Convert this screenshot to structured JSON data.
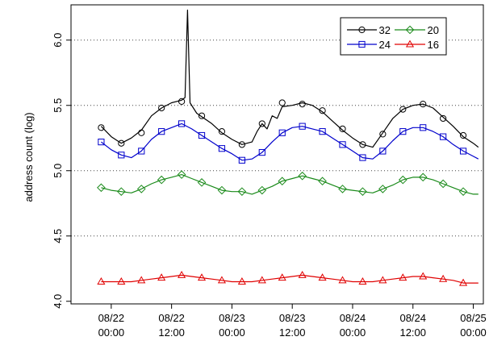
{
  "chart_data": {
    "type": "line",
    "title": "",
    "xlabel": "",
    "ylabel": "address count (log)",
    "ylim": [
      3.98,
      6.27
    ],
    "xlim": [
      "2008-08-21T16:00",
      "2008-08-25T02:00"
    ],
    "grid": "horizontal dotted",
    "legend_position": "top-right",
    "x_ticks": [
      {
        "x": "2008-08-22T00:00",
        "line1": "08/22",
        "line2": "00:00"
      },
      {
        "x": "2008-08-22T12:00",
        "line1": "08/22",
        "line2": "12:00"
      },
      {
        "x": "2008-08-23T00:00",
        "line1": "08/23",
        "line2": "00:00"
      },
      {
        "x": "2008-08-23T12:00",
        "line1": "08/23",
        "line2": "12:00"
      },
      {
        "x": "2008-08-24T00:00",
        "line1": "08/24",
        "line2": "00:00"
      },
      {
        "x": "2008-08-24T12:00",
        "line1": "08/24",
        "line2": "12:00"
      },
      {
        "x": "2008-08-25T00:00",
        "line1": "08/25",
        "line2": "00:00"
      }
    ],
    "y_ticks": [
      {
        "value": 4.0,
        "label": "4.0"
      },
      {
        "value": 4.5,
        "label": "4.5"
      },
      {
        "value": 5.0,
        "label": "5.0"
      },
      {
        "value": 5.5,
        "label": "5.5"
      },
      {
        "value": 6.0,
        "label": "6.0"
      }
    ],
    "series": [
      {
        "name": "32",
        "color": "#000000",
        "marker": "circle",
        "points": [
          [
            "2008-08-21T22:00",
            5.34
          ],
          [
            "2008-08-22T00:00",
            5.26
          ],
          [
            "2008-08-22T02:00",
            5.21
          ],
          [
            "2008-08-22T04:00",
            5.25
          ],
          [
            "2008-08-22T06:00",
            5.31
          ],
          [
            "2008-08-22T08:00",
            5.42
          ],
          [
            "2008-08-22T10:00",
            5.48
          ],
          [
            "2008-08-22T12:00",
            5.52
          ],
          [
            "2008-08-22T14:00",
            5.54
          ],
          [
            "2008-08-22T14:40",
            5.56
          ],
          [
            "2008-08-22T15:10",
            6.23
          ],
          [
            "2008-08-22T15:40",
            5.52
          ],
          [
            "2008-08-22T17:00",
            5.44
          ],
          [
            "2008-08-22T20:00",
            5.36
          ],
          [
            "2008-08-22T22:00",
            5.29
          ],
          [
            "2008-08-23T00:00",
            5.24
          ],
          [
            "2008-08-23T02:00",
            5.2
          ],
          [
            "2008-08-23T04:00",
            5.22
          ],
          [
            "2008-08-23T05:00",
            5.3
          ],
          [
            "2008-08-23T06:00",
            5.36
          ],
          [
            "2008-08-23T07:00",
            5.32
          ],
          [
            "2008-08-23T08:00",
            5.42
          ],
          [
            "2008-08-23T09:00",
            5.4
          ],
          [
            "2008-08-23T10:00",
            5.49
          ],
          [
            "2008-08-23T12:00",
            5.5
          ],
          [
            "2008-08-23T14:00",
            5.52
          ],
          [
            "2008-08-23T16:00",
            5.5
          ],
          [
            "2008-08-23T18:00",
            5.45
          ],
          [
            "2008-08-23T20:00",
            5.38
          ],
          [
            "2008-08-23T22:00",
            5.31
          ],
          [
            "2008-08-24T00:00",
            5.25
          ],
          [
            "2008-08-24T02:00",
            5.2
          ],
          [
            "2008-08-24T04:00",
            5.18
          ],
          [
            "2008-08-24T06:00",
            5.29
          ],
          [
            "2008-08-24T08:00",
            5.4
          ],
          [
            "2008-08-24T10:00",
            5.47
          ],
          [
            "2008-08-24T12:00",
            5.5
          ],
          [
            "2008-08-24T14:00",
            5.51
          ],
          [
            "2008-08-24T16:00",
            5.48
          ],
          [
            "2008-08-24T18:00",
            5.41
          ],
          [
            "2008-08-24T20:00",
            5.34
          ],
          [
            "2008-08-24T22:00",
            5.26
          ],
          [
            "2008-08-25T00:00",
            5.21
          ],
          [
            "2008-08-25T01:00",
            5.18
          ]
        ],
        "marker_points": [
          [
            "2008-08-21T22:00",
            5.33
          ],
          [
            "2008-08-22T02:00",
            5.21
          ],
          [
            "2008-08-22T06:00",
            5.29
          ],
          [
            "2008-08-22T10:00",
            5.48
          ],
          [
            "2008-08-22T14:00",
            5.53
          ],
          [
            "2008-08-22T18:00",
            5.42
          ],
          [
            "2008-08-22T22:00",
            5.3
          ],
          [
            "2008-08-23T02:00",
            5.2
          ],
          [
            "2008-08-23T06:00",
            5.36
          ],
          [
            "2008-08-23T10:00",
            5.52
          ],
          [
            "2008-08-23T14:00",
            5.51
          ],
          [
            "2008-08-23T18:00",
            5.46
          ],
          [
            "2008-08-23T22:00",
            5.32
          ],
          [
            "2008-08-24T02:00",
            5.2
          ],
          [
            "2008-08-24T06:00",
            5.28
          ],
          [
            "2008-08-24T10:00",
            5.47
          ],
          [
            "2008-08-24T14:00",
            5.51
          ],
          [
            "2008-08-24T18:00",
            5.4
          ],
          [
            "2008-08-24T22:00",
            5.27
          ]
        ]
      },
      {
        "name": "24",
        "color": "#0000cc",
        "marker": "square",
        "points": [
          [
            "2008-08-21T22:00",
            5.22
          ],
          [
            "2008-08-22T00:00",
            5.16
          ],
          [
            "2008-08-22T02:00",
            5.12
          ],
          [
            "2008-08-22T04:00",
            5.1
          ],
          [
            "2008-08-22T06:00",
            5.15
          ],
          [
            "2008-08-22T08:00",
            5.24
          ],
          [
            "2008-08-22T10:00",
            5.3
          ],
          [
            "2008-08-22T12:00",
            5.33
          ],
          [
            "2008-08-22T14:00",
            5.36
          ],
          [
            "2008-08-22T16:00",
            5.32
          ],
          [
            "2008-08-22T18:00",
            5.27
          ],
          [
            "2008-08-22T20:00",
            5.22
          ],
          [
            "2008-08-22T22:00",
            5.17
          ],
          [
            "2008-08-23T00:00",
            5.13
          ],
          [
            "2008-08-23T02:00",
            5.08
          ],
          [
            "2008-08-23T04:00",
            5.09
          ],
          [
            "2008-08-23T06:00",
            5.14
          ],
          [
            "2008-08-23T08:00",
            5.22
          ],
          [
            "2008-08-23T10:00",
            5.29
          ],
          [
            "2008-08-23T12:00",
            5.33
          ],
          [
            "2008-08-23T14:00",
            5.34
          ],
          [
            "2008-08-23T16:00",
            5.32
          ],
          [
            "2008-08-23T18:00",
            5.3
          ],
          [
            "2008-08-23T20:00",
            5.25
          ],
          [
            "2008-08-23T22:00",
            5.2
          ],
          [
            "2008-08-24T00:00",
            5.15
          ],
          [
            "2008-08-24T02:00",
            5.1
          ],
          [
            "2008-08-24T04:00",
            5.09
          ],
          [
            "2008-08-24T06:00",
            5.15
          ],
          [
            "2008-08-24T08:00",
            5.23
          ],
          [
            "2008-08-24T10:00",
            5.3
          ],
          [
            "2008-08-24T12:00",
            5.33
          ],
          [
            "2008-08-24T14:00",
            5.33
          ],
          [
            "2008-08-24T16:00",
            5.3
          ],
          [
            "2008-08-24T18:00",
            5.26
          ],
          [
            "2008-08-24T20:00",
            5.2
          ],
          [
            "2008-08-24T22:00",
            5.15
          ],
          [
            "2008-08-25T00:00",
            5.11
          ],
          [
            "2008-08-25T01:00",
            5.09
          ]
        ],
        "marker_points": [
          [
            "2008-08-21T22:00",
            5.22
          ],
          [
            "2008-08-22T02:00",
            5.12
          ],
          [
            "2008-08-22T06:00",
            5.15
          ],
          [
            "2008-08-22T10:00",
            5.3
          ],
          [
            "2008-08-22T14:00",
            5.36
          ],
          [
            "2008-08-22T18:00",
            5.27
          ],
          [
            "2008-08-22T22:00",
            5.17
          ],
          [
            "2008-08-23T02:00",
            5.08
          ],
          [
            "2008-08-23T06:00",
            5.14
          ],
          [
            "2008-08-23T10:00",
            5.29
          ],
          [
            "2008-08-23T14:00",
            5.34
          ],
          [
            "2008-08-23T18:00",
            5.3
          ],
          [
            "2008-08-23T22:00",
            5.2
          ],
          [
            "2008-08-24T02:00",
            5.1
          ],
          [
            "2008-08-24T06:00",
            5.15
          ],
          [
            "2008-08-24T10:00",
            5.3
          ],
          [
            "2008-08-24T14:00",
            5.33
          ],
          [
            "2008-08-24T18:00",
            5.26
          ],
          [
            "2008-08-24T22:00",
            5.15
          ]
        ]
      },
      {
        "name": "20",
        "color": "#1a8a1a",
        "marker": "diamond",
        "points": [
          [
            "2008-08-21T22:00",
            4.87
          ],
          [
            "2008-08-22T00:00",
            4.85
          ],
          [
            "2008-08-22T02:00",
            4.84
          ],
          [
            "2008-08-22T04:00",
            4.83
          ],
          [
            "2008-08-22T06:00",
            4.86
          ],
          [
            "2008-08-22T08:00",
            4.9
          ],
          [
            "2008-08-22T10:00",
            4.93
          ],
          [
            "2008-08-22T12:00",
            4.95
          ],
          [
            "2008-08-22T14:00",
            4.97
          ],
          [
            "2008-08-22T16:00",
            4.94
          ],
          [
            "2008-08-22T18:00",
            4.91
          ],
          [
            "2008-08-22T20:00",
            4.88
          ],
          [
            "2008-08-22T22:00",
            4.85
          ],
          [
            "2008-08-23T00:00",
            4.84
          ],
          [
            "2008-08-23T02:00",
            4.84
          ],
          [
            "2008-08-23T04:00",
            4.82
          ],
          [
            "2008-08-23T06:00",
            4.85
          ],
          [
            "2008-08-23T08:00",
            4.88
          ],
          [
            "2008-08-23T10:00",
            4.92
          ],
          [
            "2008-08-23T12:00",
            4.94
          ],
          [
            "2008-08-23T14:00",
            4.96
          ],
          [
            "2008-08-23T16:00",
            4.94
          ],
          [
            "2008-08-23T18:00",
            4.92
          ],
          [
            "2008-08-23T20:00",
            4.89
          ],
          [
            "2008-08-23T22:00",
            4.86
          ],
          [
            "2008-08-24T00:00",
            4.85
          ],
          [
            "2008-08-24T02:00",
            4.84
          ],
          [
            "2008-08-24T04:00",
            4.83
          ],
          [
            "2008-08-24T06:00",
            4.86
          ],
          [
            "2008-08-24T08:00",
            4.89
          ],
          [
            "2008-08-24T10:00",
            4.93
          ],
          [
            "2008-08-24T12:00",
            4.95
          ],
          [
            "2008-08-24T14:00",
            4.95
          ],
          [
            "2008-08-24T16:00",
            4.93
          ],
          [
            "2008-08-24T18:00",
            4.9
          ],
          [
            "2008-08-24T20:00",
            4.87
          ],
          [
            "2008-08-24T22:00",
            4.84
          ],
          [
            "2008-08-25T00:00",
            4.82
          ],
          [
            "2008-08-25T01:00",
            4.82
          ]
        ],
        "marker_points": [
          [
            "2008-08-21T22:00",
            4.87
          ],
          [
            "2008-08-22T02:00",
            4.84
          ],
          [
            "2008-08-22T06:00",
            4.86
          ],
          [
            "2008-08-22T10:00",
            4.93
          ],
          [
            "2008-08-22T14:00",
            4.97
          ],
          [
            "2008-08-22T18:00",
            4.91
          ],
          [
            "2008-08-22T22:00",
            4.85
          ],
          [
            "2008-08-23T02:00",
            4.84
          ],
          [
            "2008-08-23T06:00",
            4.85
          ],
          [
            "2008-08-23T10:00",
            4.92
          ],
          [
            "2008-08-23T14:00",
            4.96
          ],
          [
            "2008-08-23T18:00",
            4.92
          ],
          [
            "2008-08-23T22:00",
            4.86
          ],
          [
            "2008-08-24T02:00",
            4.84
          ],
          [
            "2008-08-24T06:00",
            4.86
          ],
          [
            "2008-08-24T10:00",
            4.93
          ],
          [
            "2008-08-24T14:00",
            4.95
          ],
          [
            "2008-08-24T18:00",
            4.9
          ],
          [
            "2008-08-24T22:00",
            4.84
          ]
        ]
      },
      {
        "name": "16",
        "color": "#e00000",
        "marker": "triangle",
        "points": [
          [
            "2008-08-21T22:00",
            4.15
          ],
          [
            "2008-08-22T00:00",
            4.15
          ],
          [
            "2008-08-22T02:00",
            4.15
          ],
          [
            "2008-08-22T04:00",
            4.15
          ],
          [
            "2008-08-22T06:00",
            4.16
          ],
          [
            "2008-08-22T08:00",
            4.17
          ],
          [
            "2008-08-22T10:00",
            4.18
          ],
          [
            "2008-08-22T12:00",
            4.19
          ],
          [
            "2008-08-22T14:00",
            4.2
          ],
          [
            "2008-08-22T16:00",
            4.19
          ],
          [
            "2008-08-22T18:00",
            4.18
          ],
          [
            "2008-08-22T20:00",
            4.17
          ],
          [
            "2008-08-22T22:00",
            4.16
          ],
          [
            "2008-08-23T00:00",
            4.15
          ],
          [
            "2008-08-23T02:00",
            4.15
          ],
          [
            "2008-08-23T04:00",
            4.15
          ],
          [
            "2008-08-23T06:00",
            4.16
          ],
          [
            "2008-08-23T08:00",
            4.17
          ],
          [
            "2008-08-23T10:00",
            4.18
          ],
          [
            "2008-08-23T12:00",
            4.19
          ],
          [
            "2008-08-23T14:00",
            4.2
          ],
          [
            "2008-08-23T16:00",
            4.19
          ],
          [
            "2008-08-23T18:00",
            4.18
          ],
          [
            "2008-08-23T20:00",
            4.17
          ],
          [
            "2008-08-23T22:00",
            4.16
          ],
          [
            "2008-08-24T00:00",
            4.15
          ],
          [
            "2008-08-24T02:00",
            4.15
          ],
          [
            "2008-08-24T04:00",
            4.15
          ],
          [
            "2008-08-24T06:00",
            4.16
          ],
          [
            "2008-08-24T08:00",
            4.17
          ],
          [
            "2008-08-24T10:00",
            4.18
          ],
          [
            "2008-08-24T12:00",
            4.19
          ],
          [
            "2008-08-24T14:00",
            4.19
          ],
          [
            "2008-08-24T16:00",
            4.18
          ],
          [
            "2008-08-24T18:00",
            4.17
          ],
          [
            "2008-08-24T20:00",
            4.16
          ],
          [
            "2008-08-24T22:00",
            4.14
          ],
          [
            "2008-08-25T00:00",
            4.14
          ],
          [
            "2008-08-25T01:00",
            4.14
          ]
        ],
        "marker_points": [
          [
            "2008-08-21T22:00",
            4.15
          ],
          [
            "2008-08-22T02:00",
            4.15
          ],
          [
            "2008-08-22T06:00",
            4.16
          ],
          [
            "2008-08-22T10:00",
            4.18
          ],
          [
            "2008-08-22T14:00",
            4.2
          ],
          [
            "2008-08-22T18:00",
            4.18
          ],
          [
            "2008-08-22T22:00",
            4.16
          ],
          [
            "2008-08-23T02:00",
            4.15
          ],
          [
            "2008-08-23T06:00",
            4.16
          ],
          [
            "2008-08-23T10:00",
            4.18
          ],
          [
            "2008-08-23T14:00",
            4.2
          ],
          [
            "2008-08-23T18:00",
            4.18
          ],
          [
            "2008-08-23T22:00",
            4.16
          ],
          [
            "2008-08-24T02:00",
            4.15
          ],
          [
            "2008-08-24T06:00",
            4.16
          ],
          [
            "2008-08-24T10:00",
            4.18
          ],
          [
            "2008-08-24T14:00",
            4.19
          ],
          [
            "2008-08-24T18:00",
            4.17
          ],
          [
            "2008-08-24T22:00",
            4.14
          ]
        ]
      }
    ]
  }
}
